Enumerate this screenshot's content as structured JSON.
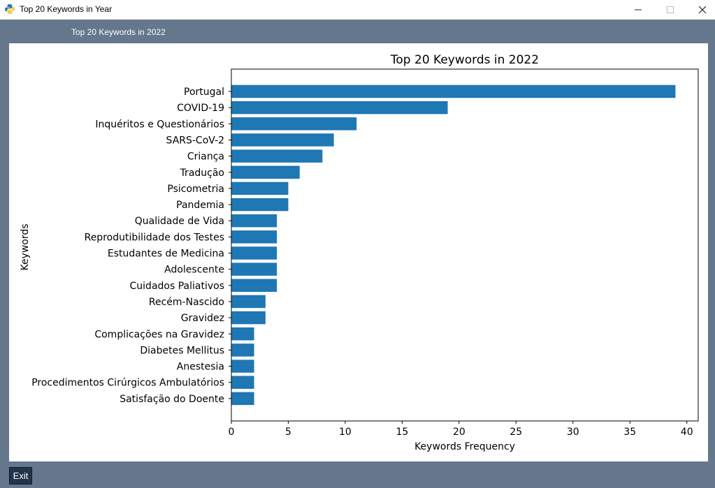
{
  "window": {
    "title": "Top 20 Keywords in Year",
    "header_label": "Top 20 Keywords in 2022"
  },
  "buttons": {
    "exit_label": "Exit"
  },
  "icons": {
    "app": "python-icon",
    "minimize": "minimize-icon",
    "maximize": "maximize-icon",
    "close": "close-icon"
  },
  "colors": {
    "window_background": "#64778d",
    "bar": "#1f77b4",
    "exit_button": "#22344a"
  },
  "chart_data": {
    "type": "bar",
    "orientation": "horizontal",
    "title": "Top 20 Keywords in 2022",
    "xlabel": "Keywords Frequency",
    "ylabel": "Keywords",
    "xlim": [
      0,
      41
    ],
    "xticks": [
      0,
      5,
      10,
      15,
      20,
      25,
      30,
      35,
      40
    ],
    "grid": false,
    "categories": [
      "Portugal",
      "COVID-19",
      "Inquéritos e Questionários",
      "SARS-CoV-2",
      "Criança",
      "Tradução",
      "Psicometria",
      "Pandemia",
      "Qualidade de Vida",
      "Reprodutibilidade dos Testes",
      "Estudantes de Medicina",
      "Adolescente",
      "Cuidados Paliativos",
      "Recém-Nascido",
      "Gravidez",
      "Complicações na Gravidez",
      "Diabetes Mellitus",
      "Anestesia",
      "Procedimentos Cirúrgicos Ambulatórios",
      "Satisfação do Doente"
    ],
    "values": [
      39,
      19,
      11,
      9,
      8,
      6,
      5,
      5,
      4,
      4,
      4,
      4,
      4,
      3,
      3,
      2,
      2,
      2,
      2,
      2
    ]
  }
}
